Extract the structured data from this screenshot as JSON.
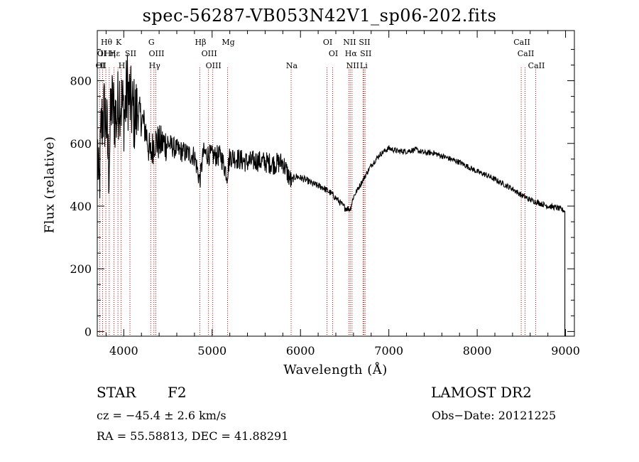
{
  "header": {
    "title": "spec-56287-VB053N42V1_sp06-202.fits"
  },
  "footer": {
    "object_type": "STAR",
    "subclass": "F2",
    "survey": "LAMOST DR2",
    "redshift_line": "cz = −45.4 ± 2.6 km/s",
    "obs_date": "Obs−Date: 20121225",
    "coords": "RA =  55.58813, DEC =  41.88291"
  },
  "chart_data": {
    "type": "line",
    "title": "spec-56287-VB053N42V1_sp06-202.fits",
    "xlabel": "Wavelength (Å)",
    "ylabel": "Flux (relative)",
    "xlim": [
      3700,
      9100
    ],
    "ylim": [
      -15,
      960
    ],
    "xticks": [
      4000,
      5000,
      6000,
      7000,
      8000,
      9000
    ],
    "yticks": [
      0,
      200,
      400,
      600,
      800
    ],
    "line_color": "#000000",
    "marker_color": "#cc0000",
    "continuum": {
      "x": [
        3700,
        3720,
        3745,
        3770,
        3800,
        3830,
        3860,
        3890,
        3920,
        3950,
        3980,
        4010,
        4040,
        4080,
        4120,
        4160,
        4200,
        4250,
        4300,
        4350,
        4400,
        4500,
        4600,
        4700,
        4800,
        4860,
        4900,
        5000,
        5100,
        5170,
        5200,
        5300,
        5400,
        5500,
        5600,
        5700,
        5800,
        5890,
        5950,
        6050,
        6150,
        6250,
        6350,
        6420,
        6500,
        6563,
        6600,
        6700,
        6800,
        6900,
        7000,
        7100,
        7200,
        7300,
        7400,
        7500,
        7600,
        7700,
        7800,
        7900,
        8000,
        8100,
        8200,
        8300,
        8400,
        8500,
        8600,
        8700,
        8800,
        8900,
        8990
      ],
      "y": [
        620,
        430,
        650,
        700,
        680,
        520,
        730,
        700,
        680,
        760,
        720,
        690,
        780,
        720,
        690,
        700,
        680,
        640,
        560,
        610,
        600,
        600,
        580,
        570,
        560,
        480,
        570,
        560,
        560,
        500,
        560,
        550,
        540,
        545,
        540,
        535,
        540,
        480,
        495,
        485,
        470,
        460,
        440,
        420,
        395,
        390,
        430,
        480,
        530,
        565,
        585,
        575,
        575,
        580,
        570,
        570,
        560,
        550,
        540,
        525,
        510,
        500,
        485,
        470,
        455,
        435,
        420,
        410,
        400,
        395,
        385
      ]
    },
    "lines": [
      {
        "label": "Hθ",
        "x": 3797
      },
      {
        "label": "K",
        "x": 3934
      },
      {
        "label": "O",
        "x": 3727
      },
      {
        "label": "II",
        "x": 3760
      },
      {
        "label": "Hη",
        "x": 3835
      },
      {
        "label": "Hε",
        "x": 3889
      },
      {
        "label": "SII",
        "x": 4070
      },
      {
        "label": "OI",
        "x": 3727
      },
      {
        "label": "II",
        "x": 3760
      },
      {
        "label": "H",
        "x": 3970
      },
      {
        "label": "G",
        "x": 4305
      },
      {
        "label": "OIII",
        "x": 4363
      },
      {
        "label": "Hγ",
        "x": 4341
      },
      {
        "label": "Hβ",
        "x": 4861
      },
      {
        "label": "OIII",
        "x": 4959
      },
      {
        "label": "OIII",
        "x": 5007
      },
      {
        "label": "Mg",
        "x": 5175
      },
      {
        "label": "Na",
        "x": 5894
      },
      {
        "label": "OI",
        "x": 6300
      },
      {
        "label": "OI",
        "x": 6364
      },
      {
        "label": "NII",
        "x": 6548
      },
      {
        "label": "Hα",
        "x": 6563
      },
      {
        "label": "NII",
        "x": 6583
      },
      {
        "label": "SII",
        "x": 6717
      },
      {
        "label": "Li",
        "x": 6708
      },
      {
        "label": "SII",
        "x": 6731
      },
      {
        "label": "CaII",
        "x": 8498
      },
      {
        "label": "CaII",
        "x": 8542
      },
      {
        "label": "CaII",
        "x": 8662
      }
    ]
  }
}
